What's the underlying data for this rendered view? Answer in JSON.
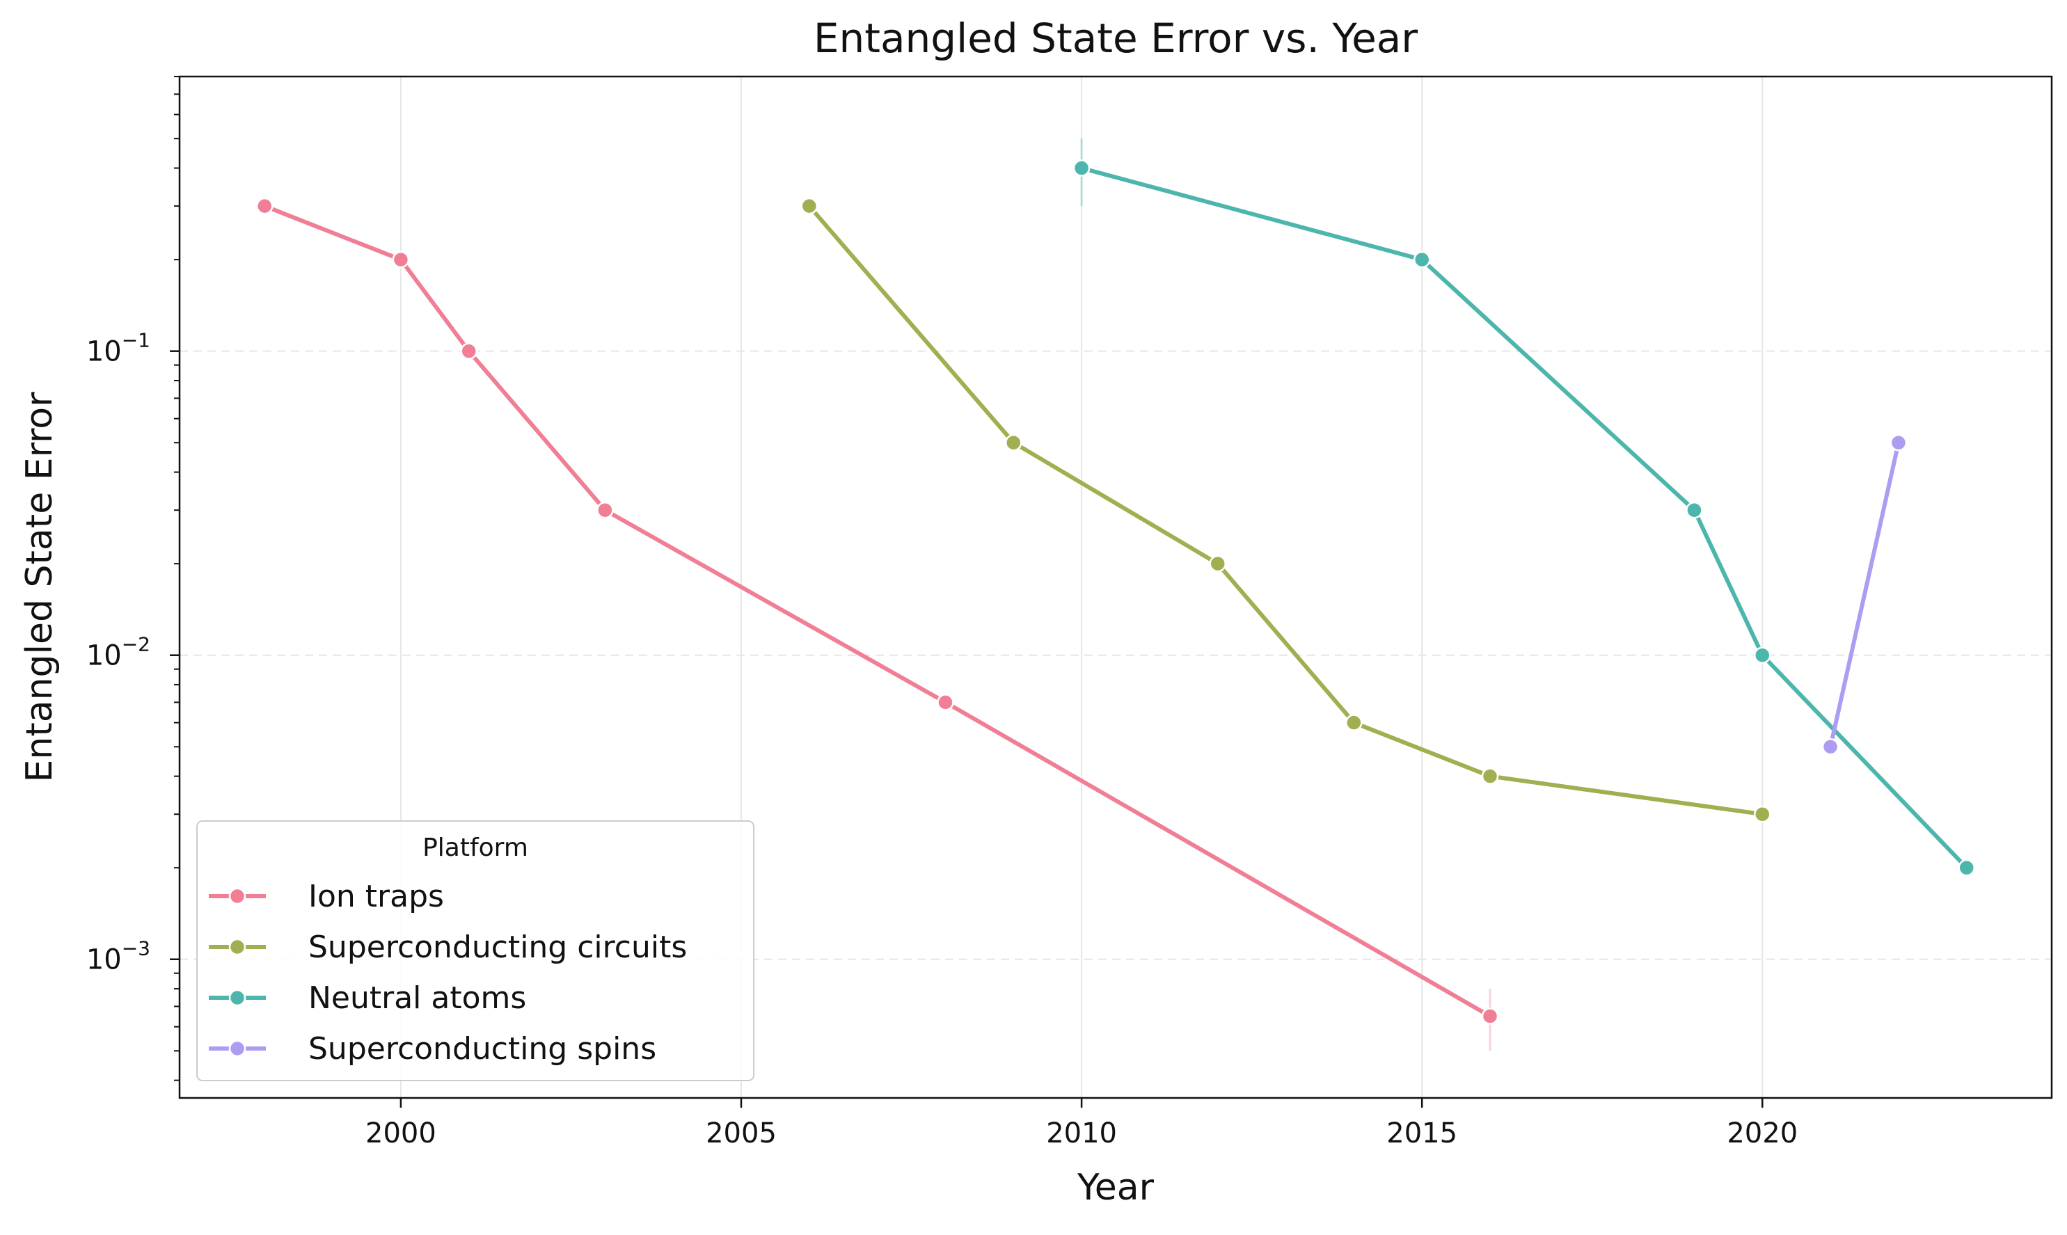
{
  "chart_data": {
    "type": "line",
    "title": "Entangled State Error vs. Year",
    "xlabel": "Year",
    "ylabel": "Entangled State Error",
    "xlim": [
      1996.75,
      2024.25
    ],
    "ylim": [
      0.00035,
      0.8
    ],
    "yscale": "log",
    "x_ticks": [
      2000,
      2005,
      2010,
      2015,
      2020
    ],
    "y_ticks": [
      {
        "value": 0.1,
        "base": "10",
        "exp": "−1"
      },
      {
        "value": 0.01,
        "base": "10",
        "exp": "−2"
      },
      {
        "value": 0.001,
        "base": "10",
        "exp": "−3"
      }
    ],
    "grid": true,
    "legend": {
      "title": "Platform",
      "position": "lower-left"
    },
    "series": [
      {
        "name": "Ion traps",
        "color": "#f07f96",
        "points": [
          {
            "x": 1998,
            "y": 0.3
          },
          {
            "x": 2000,
            "y": 0.2
          },
          {
            "x": 2001,
            "y": 0.1
          },
          {
            "x": 2003,
            "y": 0.03
          },
          {
            "x": 2008,
            "y": 0.007
          },
          {
            "x": 2016,
            "y": 0.00065,
            "err_low": 0.0005,
            "err_high": 0.0008
          }
        ]
      },
      {
        "name": "Superconducting circuits",
        "color": "#a2ae4f",
        "points": [
          {
            "x": 2006,
            "y": 0.3
          },
          {
            "x": 2009,
            "y": 0.05
          },
          {
            "x": 2012,
            "y": 0.02
          },
          {
            "x": 2014,
            "y": 0.006
          },
          {
            "x": 2016,
            "y": 0.004
          },
          {
            "x": 2020,
            "y": 0.003
          }
        ]
      },
      {
        "name": "Neutral atoms",
        "color": "#4db6ac",
        "points": [
          {
            "x": 2010,
            "y": 0.4,
            "err_low": 0.3,
            "err_high": 0.5
          },
          {
            "x": 2015,
            "y": 0.2
          },
          {
            "x": 2019,
            "y": 0.03
          },
          {
            "x": 2020,
            "y": 0.01
          },
          {
            "x": 2023,
            "y": 0.002
          }
        ]
      },
      {
        "name": "Superconducting spins",
        "color": "#ae9cf2",
        "points": [
          {
            "x": 2021,
            "y": 0.005
          },
          {
            "x": 2022,
            "y": 0.05
          }
        ]
      }
    ]
  }
}
